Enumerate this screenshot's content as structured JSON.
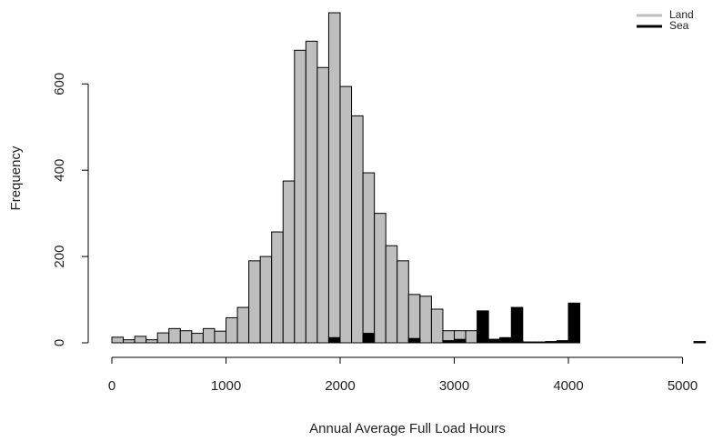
{
  "chart_data": {
    "type": "histogram",
    "xlabel": "Annual Average Full Load Hours",
    "ylabel": "Frequency",
    "bins": [
      0,
      100,
      200,
      300,
      400,
      500,
      600,
      700,
      800,
      900,
      1000,
      1100,
      1200,
      1300,
      1400,
      1500,
      1600,
      1700,
      1800,
      1900,
      2000,
      2100,
      2200,
      2300,
      2400,
      2500,
      2600,
      2700,
      2800,
      2900,
      3000,
      3100,
      3200,
      3300,
      3400,
      3500,
      3600,
      3700,
      3800,
      3900,
      4000,
      4100,
      4200,
      4300,
      4400,
      4500,
      4600,
      4700,
      4800,
      4900,
      5000,
      5100,
      5200
    ],
    "series": [
      {
        "name": "Land",
        "color": "#bebebe",
        "values": [
          13,
          7,
          15,
          7,
          23,
          33,
          28,
          22,
          33,
          27,
          58,
          82,
          190,
          200,
          257,
          375,
          678,
          699,
          638,
          765,
          594,
          526,
          394,
          300,
          225,
          190,
          112,
          108,
          78,
          28,
          28,
          28,
          10,
          8,
          10,
          5,
          0,
          0,
          0,
          0,
          0,
          0,
          0,
          0,
          0,
          0,
          0,
          0,
          0,
          0,
          0,
          0
        ]
      },
      {
        "name": "Sea",
        "color": "#000000",
        "values": [
          0,
          0,
          0,
          0,
          0,
          0,
          0,
          0,
          0,
          0,
          0,
          0,
          0,
          0,
          0,
          0,
          0,
          0,
          0,
          12,
          0,
          0,
          22,
          0,
          0,
          0,
          10,
          0,
          0,
          5,
          8,
          0,
          74,
          8,
          12,
          82,
          2,
          2,
          3,
          5,
          92,
          0,
          0,
          0,
          0,
          0,
          0,
          0,
          0,
          0,
          0,
          3
        ]
      }
    ],
    "xlim": [
      0,
      5200
    ],
    "ylim": [
      0,
      765
    ],
    "xticks": [
      0,
      1000,
      2000,
      3000,
      4000,
      5000
    ],
    "yticks": [
      0,
      200,
      400,
      600
    ],
    "legend": "topright"
  }
}
